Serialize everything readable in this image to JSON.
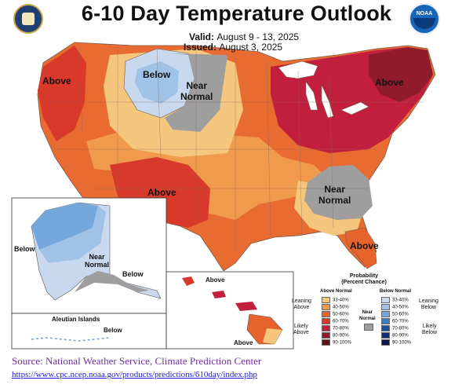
{
  "header": {
    "title": "6-10 Day Temperature Outlook",
    "valid_label": "Valid:",
    "valid_dates": "August 9 - 13, 2025",
    "issued_label": "Issued:",
    "issued_date": "August 3, 2025",
    "left_logo": "department-of-commerce-seal",
    "right_logo": "noaa-logo",
    "noaa_text": "NOAA"
  },
  "map_labels": {
    "west_coast": "Above",
    "northern_plains_below": "Below",
    "northern_rockies_near": "Near\nNormal",
    "northeast": "Above",
    "southwest": "Above",
    "southeast_near": "Near\nNormal",
    "florida": "Above",
    "alaska_west": "Below",
    "alaska_near": "Near\nNormal",
    "alaska_south": "Below",
    "aleutian_title": "Aleutian Islands",
    "aleutian_below": "Below",
    "hawaii_north": "Above",
    "hawaii_south": "Above"
  },
  "legend": {
    "title": "Probability\n(Percent Chance)",
    "above_header": "Above Normal",
    "below_header": "Below Normal",
    "near_header": "Near\nNormal",
    "leaning_above": "Leaning\nAbove",
    "likely_above": "Likely\nAbove",
    "leaning_below": "Leaning\nBelow",
    "likely_below": "Likely\nBelow",
    "above_bins": [
      "33-40%",
      "40-50%",
      "50-60%",
      "60-70%",
      "70-80%",
      "80-90%",
      "90-100%"
    ],
    "below_bins": [
      "33-40%",
      "40-50%",
      "50-60%",
      "60-70%",
      "70-80%",
      "80-90%",
      "90-100%"
    ],
    "above_colors": [
      "#f5c77e",
      "#f09a4c",
      "#e7632e",
      "#d8392b",
      "#c21e3d",
      "#8f1b2c",
      "#5e1119"
    ],
    "below_colors": [
      "#c8d8ef",
      "#9fc2e6",
      "#74a7dc",
      "#3d7cc4",
      "#1f4f9e",
      "#12307a",
      "#0b1a4c"
    ],
    "near_color": "#9e9e9e"
  },
  "footer": {
    "source": "Source: National Weather Service, Climate Prediction Center",
    "url": "https://www.cpc.ncep.noaa.gov/products/predictions/610day/index.php"
  }
}
